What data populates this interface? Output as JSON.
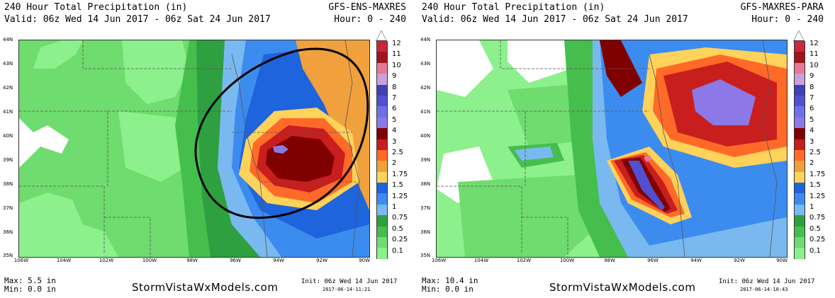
{
  "left": {
    "title": "240 Hour Total Precipitation (in)",
    "valid": "Valid: 06z Wed 14 Jun 2017 - 06z Sat 24 Jun 2017",
    "model": "GFS-ENS-MAXRES",
    "hour": "Hour: 0 - 240",
    "max": "Max: 5.5 in",
    "min": "Min: 0.0 in",
    "brand": "StormVistaWxModels.com",
    "init": "Init: 06z Wed 14 Jun 2017",
    "init_stamp": "2017-06-14-11:21"
  },
  "right": {
    "title": "240 Hour Total Precipitation (in)",
    "valid": "Valid: 06z Wed 14 Jun 2017 - 06z Sat 24 Jun 2017",
    "model": "GFS-MAXRES-PARA",
    "hour": "Hour: 0 - 240",
    "max": "Max: 10.4 in",
    "min": "Min: 0.0 in",
    "brand": "StormVistaWxModels.com",
    "init": "Init: 06z Wed 14 Jun 2017",
    "init_stamp": "2017-06-14-10:43"
  },
  "lat_labels": [
    "44N",
    "43N",
    "42N",
    "41N",
    "40N",
    "39N",
    "38N",
    "37N",
    "36N",
    "35N"
  ],
  "lon_labels": [
    "106W",
    "104W",
    "102W",
    "100W",
    "98W",
    "96W",
    "94W",
    "92W",
    "90W"
  ],
  "colorbar": {
    "labels": [
      "12",
      "11",
      "10",
      "9",
      "8",
      "7",
      "6",
      "5",
      "4",
      "3",
      "2.5",
      "2",
      "1.75",
      "1.5",
      "1.25",
      "1",
      "0.75",
      "0.5",
      "0.25",
      "0.1"
    ],
    "colors": [
      "#c8283c",
      "#a0141e",
      "#e87896",
      "#c8a0dc",
      "#4040b4",
      "#5050d2",
      "#7070e6",
      "#8c78e6",
      "#800000",
      "#c81e1e",
      "#ff6a28",
      "#f0a03c",
      "#ffd25a",
      "#1e64dc",
      "#3c8cf0",
      "#7ab9f0",
      "#2ea040",
      "#46be4e",
      "#6edc6e",
      "#8cf08c"
    ]
  }
}
